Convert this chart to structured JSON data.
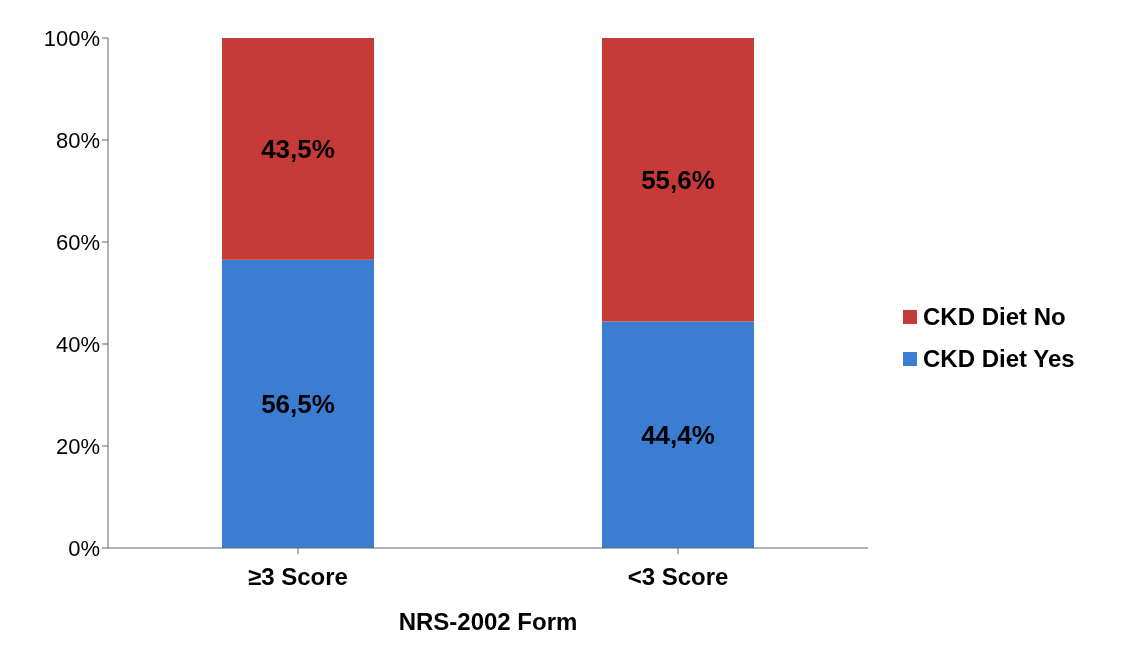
{
  "chart_data": {
    "type": "bar",
    "stacked": true,
    "xlabel": "NRS-2002 Form",
    "categories": [
      "≥3 Score",
      "<3 Score"
    ],
    "series": [
      {
        "name": "CKD Diet Yes",
        "color": "#3b7dd2",
        "values": [
          56.5,
          44.4
        ],
        "value_labels": [
          "56,5%",
          "44,4%"
        ]
      },
      {
        "name": "CKD Diet No",
        "color": "#c63b38",
        "values": [
          43.5,
          55.6
        ],
        "value_labels": [
          "43,5%",
          "55,6%"
        ]
      }
    ],
    "ylim": [
      0,
      100
    ],
    "yticks": [
      {
        "value": 0,
        "label": "0%"
      },
      {
        "value": 20,
        "label": "20%"
      },
      {
        "value": 40,
        "label": "40%"
      },
      {
        "value": 60,
        "label": "60%"
      },
      {
        "value": 80,
        "label": "80%"
      },
      {
        "value": 100,
        "label": "100%"
      }
    ],
    "grid": false,
    "legend": "right"
  }
}
